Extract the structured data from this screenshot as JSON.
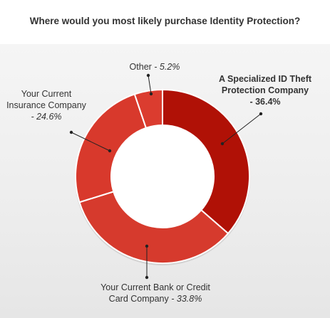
{
  "chart_data": {
    "type": "pie",
    "title": "Where would you most likely purchase Identity Protection?",
    "donut": true,
    "slices": [
      {
        "name_lines": [
          "A Specialized ID Theft",
          "Protection Company"
        ],
        "pct_text": "- 36.4%",
        "value": 36.4,
        "color": "#b01106"
      },
      {
        "name_lines": [
          "Your Current Bank or Credit",
          "Card Company"
        ],
        "pct_text": "- 33.8%",
        "value": 33.8,
        "color": "#d63a2d"
      },
      {
        "name_lines": [
          "Your Current",
          "Insurance Company"
        ],
        "pct_text": "- 24.6%",
        "value": 24.6,
        "color": "#d8392c"
      },
      {
        "name_lines": [
          "Other"
        ],
        "pct_text": "- 5.2%",
        "value": 5.2,
        "color": "#db3c2f"
      }
    ]
  }
}
